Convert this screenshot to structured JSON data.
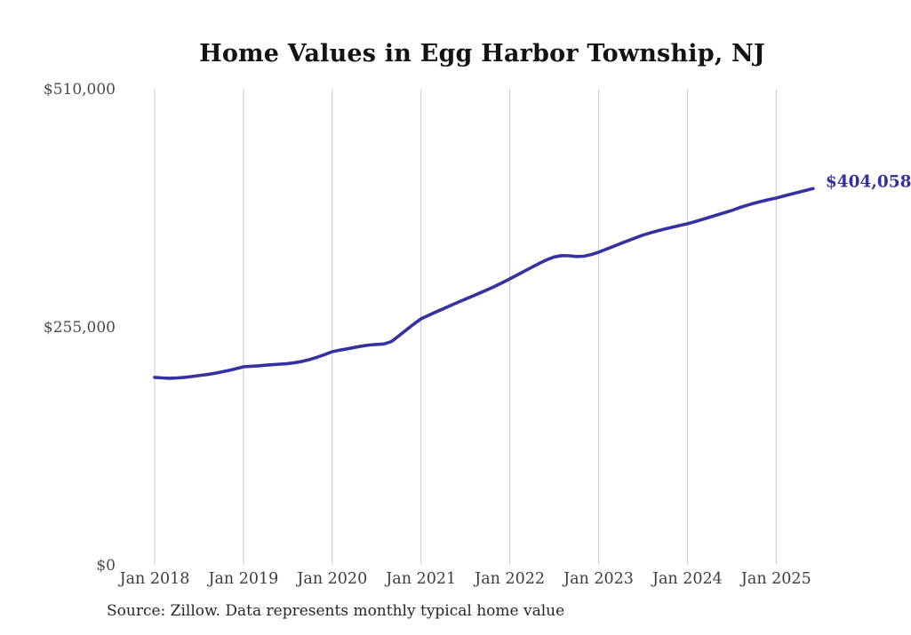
{
  "chart_data": {
    "type": "line",
    "title": "Home Values in Egg Harbor Township, NJ",
    "source_note": "Source: Zillow. Data represents monthly typical home value",
    "latest_value_label": "$404,058",
    "latest_value": 404058,
    "line_color": "#35319f",
    "grid_color": "#cbcbcb",
    "grid": "vertical",
    "legend": "none",
    "ylim": [
      0,
      510000
    ],
    "y_ticks": [
      {
        "label": "$510,000",
        "value": 510000
      },
      {
        "label": "$255,000",
        "value": 255000
      },
      {
        "label": "$0",
        "value": 0
      }
    ],
    "x_tick_labels": [
      "Jan 2018",
      "Jan 2019",
      "Jan 2020",
      "Jan 2021",
      "Jan 2022",
      "Jan 2023",
      "Jan 2024",
      "Jan 2025"
    ],
    "series": [
      {
        "name": "Typical home value",
        "frequency": "monthly",
        "start_month": "Jan 2018",
        "end_month": "Jun 2025",
        "values": [
          201800,
          201200,
          200900,
          201100,
          201800,
          202700,
          203700,
          204800,
          206000,
          207500,
          209200,
          211100,
          213100,
          213700,
          214200,
          214800,
          215400,
          216000,
          216600,
          217600,
          219000,
          221000,
          223500,
          226300,
          229300,
          230900,
          232400,
          233900,
          235300,
          236400,
          237100,
          237600,
          240200,
          246200,
          252600,
          258800,
          264500,
          268200,
          271800,
          275300,
          278800,
          282200,
          285600,
          289000,
          292400,
          295800,
          299400,
          303300,
          307300,
          311500,
          315700,
          319900,
          324000,
          327800,
          330800,
          332300,
          332100,
          331300,
          331600,
          333400,
          335900,
          339000,
          342200,
          345300,
          348300,
          351300,
          354200,
          356600,
          358800,
          360800,
          362700,
          364600,
          366300,
          368600,
          371000,
          373400,
          375800,
          378200,
          380600,
          383500,
          386000,
          388300,
          390300,
          392200,
          393900,
          396000,
          398100,
          400100,
          402100,
          404058
        ]
      }
    ]
  }
}
